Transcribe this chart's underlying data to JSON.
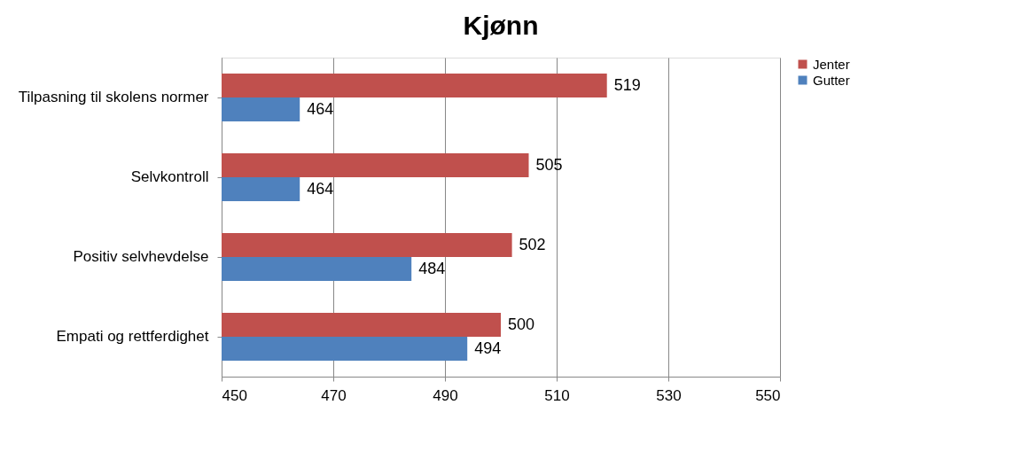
{
  "chart_data": {
    "type": "bar",
    "orientation": "horizontal",
    "title": "Kjønn",
    "categories": [
      "Tilpasning til skolens normer",
      "Selvkontroll",
      "Positiv selvhevdelse",
      "Empati og rettferdighet"
    ],
    "series": [
      {
        "name": "Jenter",
        "color": "#c0504d",
        "values": [
          519,
          505,
          502,
          500
        ]
      },
      {
        "name": "Gutter",
        "color": "#4f81bd",
        "values": [
          464,
          464,
          484,
          494
        ]
      }
    ],
    "xlim": [
      450,
      550
    ],
    "xticks": [
      450,
      470,
      490,
      510,
      530,
      550
    ],
    "grid": "x",
    "legend": "right",
    "data_labels": true
  }
}
